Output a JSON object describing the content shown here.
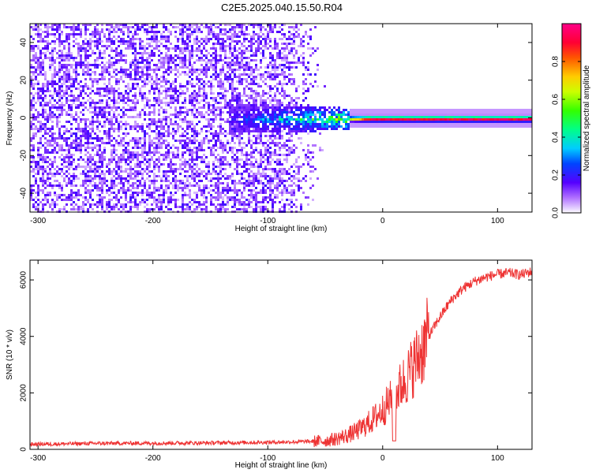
{
  "title": "C2E5.2025.040.15.50.R04",
  "chart_data": [
    {
      "type": "heatmap",
      "xlabel": "Height of straight line (km)",
      "ylabel": "Frequency (Hz)",
      "xlim": [
        -307,
        130
      ],
      "ylim": [
        -50,
        50
      ],
      "xticks": [
        -300,
        -200,
        -100,
        0,
        100
      ],
      "yticks": [
        -40,
        -20,
        0,
        20,
        40
      ],
      "colorbar": {
        "label": "Normalized spectral amplitude",
        "range": [
          0.0,
          1.0
        ],
        "ticks": [
          0.0,
          0.2,
          0.4,
          0.6,
          0.8
        ],
        "colormap": "rainbow (magenta low → red high, white below 0)"
      },
      "features": {
        "noise_region_x": [
          -307,
          -50
        ],
        "sparse_noise_x": [
          -90,
          -50
        ],
        "signal_onset_x": -135,
        "signal_line_start_x": -30,
        "signal_line_freq": 0,
        "peak_amplitude": 0.95
      }
    },
    {
      "type": "line",
      "xlabel": "Height of straight line (km)",
      "ylabel": "SNR (10 * v/v)",
      "xlim": [
        -307,
        130
      ],
      "ylim": [
        0,
        6700
      ],
      "xticks": [
        -300,
        -200,
        -100,
        0,
        100
      ],
      "yticks": [
        0,
        2000,
        4000,
        6000
      ],
      "series": [
        {
          "color": "#ee3333",
          "x": [
            -307,
            -250,
            -200,
            -150,
            -100,
            -70,
            -50,
            -40,
            -30,
            -20,
            -10,
            0,
            10,
            20,
            30,
            40,
            50,
            60,
            70,
            80,
            90,
            100,
            110,
            120,
            130
          ],
          "values": [
            180,
            210,
            220,
            230,
            250,
            270,
            300,
            380,
            500,
            700,
            1000,
            1400,
            1900,
            2500,
            3200,
            4000,
            4700,
            5300,
            5700,
            5950,
            6100,
            6200,
            6250,
            6180,
            6300
          ]
        }
      ]
    }
  ]
}
